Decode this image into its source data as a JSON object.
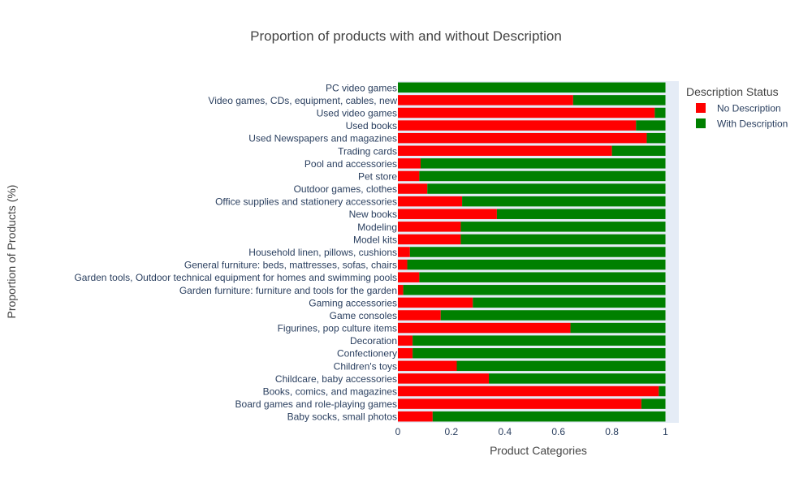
{
  "chart_data": {
    "type": "bar",
    "orientation": "horizontal",
    "barmode": "stack",
    "title": "Proportion of products with and without Description",
    "xlabel": "Product Categories",
    "ylabel": "Proportion of Products (%)",
    "xlim": [
      0,
      1.05
    ],
    "xticks": [
      {
        "value": 0,
        "label": "0"
      },
      {
        "value": 0.2,
        "label": "0.2"
      },
      {
        "value": 0.4,
        "label": "0.4"
      },
      {
        "value": 0.6,
        "label": "0.6"
      },
      {
        "value": 0.8,
        "label": "0.8"
      },
      {
        "value": 1,
        "label": "1"
      }
    ],
    "grid": false,
    "legend": {
      "title": "Description Status",
      "placement": "top-right outside"
    },
    "categories": [
      "Baby socks, small photos",
      "Board games and role-playing games",
      "Books, comics, and magazines",
      "Childcare, baby accessories",
      "Children's toys",
      "Confectionery",
      "Decoration",
      "Figurines, pop culture items",
      "Game consoles",
      "Gaming accessories",
      "Garden furniture: furniture and tools for the garden",
      "Garden tools, Outdoor technical equipment for homes and swimming pools",
      "General furniture: beds, mattresses, sofas, chairs",
      "Household linen, pillows, cushions",
      "Model kits",
      "Modeling",
      "New books",
      "Office supplies and stationery accessories",
      "Outdoor games, clothes",
      "Pet store",
      "Pool and accessories",
      "Trading cards",
      "Used Newspapers and magazines",
      "Used books",
      "Used video games",
      "Video games, CDs, equipment, cables, new",
      "PC video games"
    ],
    "series": [
      {
        "name": "No Description",
        "color": "#ff0000",
        "values": [
          0.13,
          0.91,
          0.975,
          0.34,
          0.22,
          0.055,
          0.055,
          0.645,
          0.16,
          0.28,
          0.02,
          0.08,
          0.035,
          0.045,
          0.235,
          0.235,
          0.37,
          0.24,
          0.11,
          0.08,
          0.085,
          0.8,
          0.93,
          0.89,
          0.96,
          0.655,
          0.0
        ]
      },
      {
        "name": "With Description",
        "color": "#008000",
        "values": [
          0.87,
          0.09,
          0.025,
          0.66,
          0.78,
          0.945,
          0.945,
          0.355,
          0.84,
          0.72,
          0.98,
          0.92,
          0.965,
          0.955,
          0.765,
          0.765,
          0.63,
          0.76,
          0.89,
          0.92,
          0.915,
          0.2,
          0.07,
          0.11,
          0.04,
          0.345,
          1.0
        ]
      }
    ]
  }
}
